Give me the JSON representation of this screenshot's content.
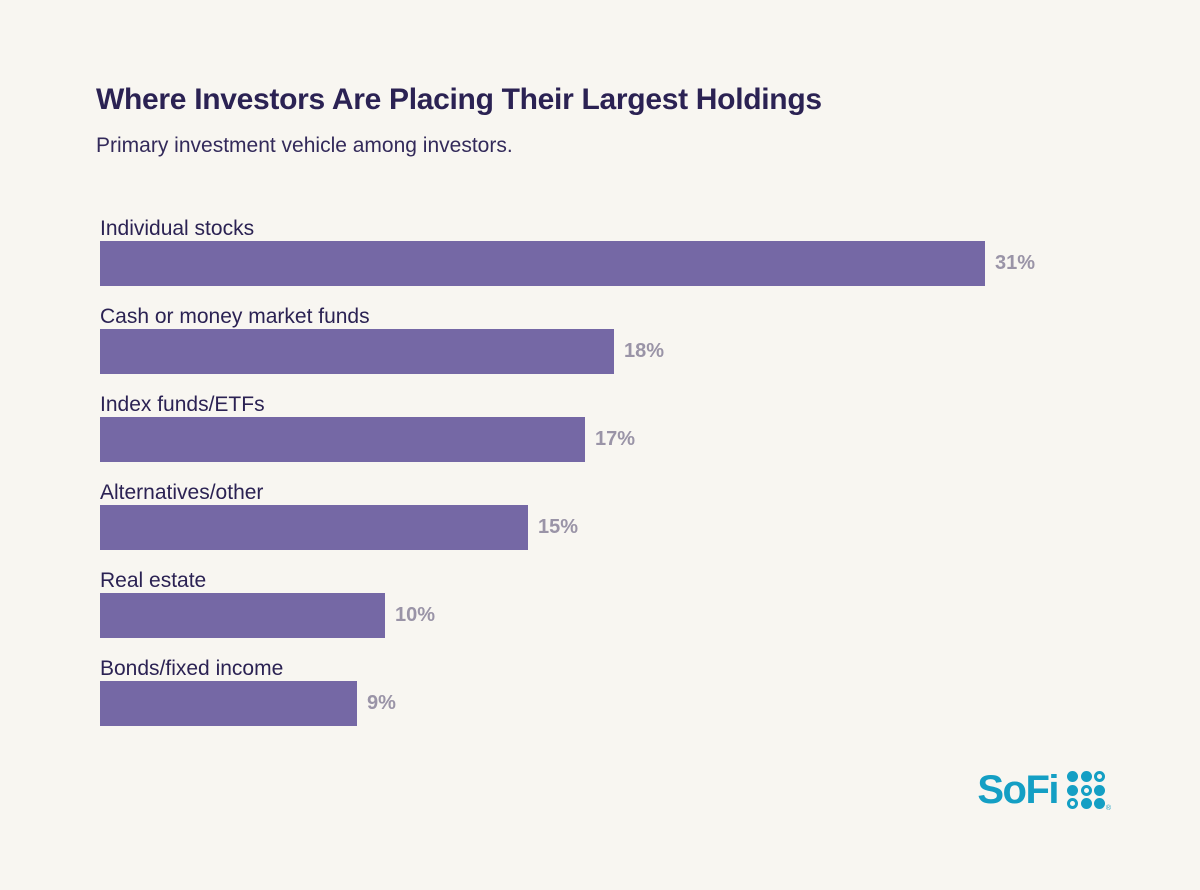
{
  "page": {
    "background_color": "#F8F6F1"
  },
  "header": {
    "title": "Where Investors Are Placing Their Largest Holdings",
    "subtitle": "Primary investment vehicle among investors."
  },
  "chart_data": {
    "type": "bar",
    "orientation": "horizontal",
    "title": "Where Investors Are Placing Their Largest Holdings",
    "subtitle": "Primary investment vehicle among investors.",
    "categories": [
      "Individual stocks",
      "Cash or money market funds",
      "Index funds/ETFs",
      "Alternatives/other",
      "Real estate",
      "Bonds/fixed income"
    ],
    "values": [
      31,
      18,
      17,
      15,
      10,
      9
    ],
    "value_labels": [
      "31%",
      "18%",
      "17%",
      "15%",
      "10%",
      "9%"
    ],
    "unit": "%",
    "xlabel": "",
    "ylabel": "",
    "xlim": [
      0,
      31
    ],
    "grid": false,
    "legend": false,
    "bar_color": "#7568A5",
    "label_color": "#2B2253",
    "value_label_color": "#9A94A7"
  },
  "branding": {
    "logo_text": "SoFi",
    "logo_color": "#149FC4",
    "registered_mark": "®",
    "dot_grid": [
      [
        "filled",
        "filled",
        "outline"
      ],
      [
        "filled",
        "outline",
        "filled"
      ],
      [
        "outline",
        "filled",
        "filled"
      ]
    ]
  }
}
